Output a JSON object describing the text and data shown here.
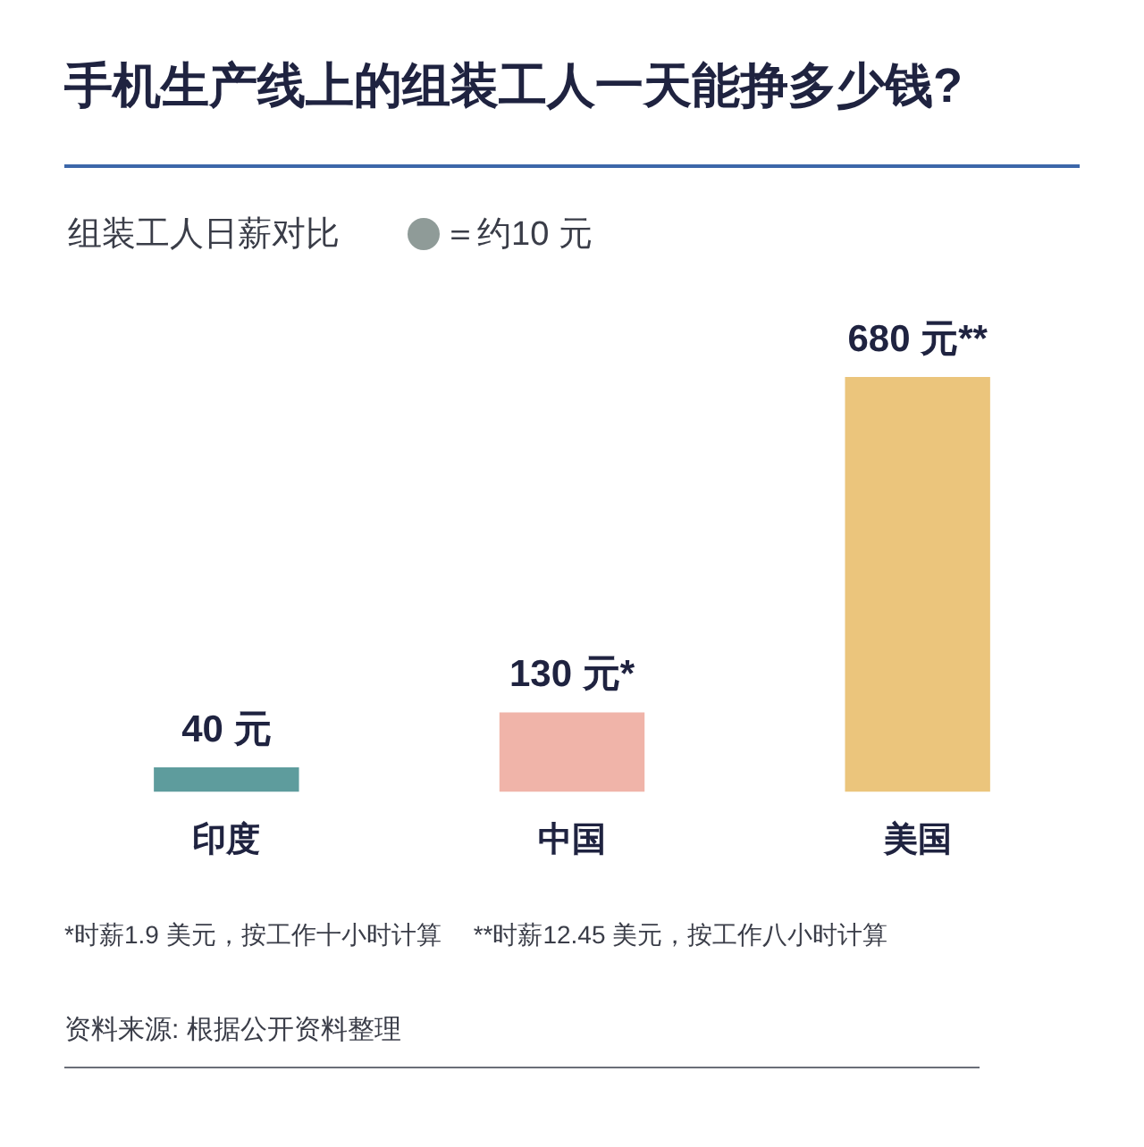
{
  "chart_data": {
    "type": "bar",
    "title": "手机生产线上的组装工人一天能挣多少钱?",
    "subtitle": "组装工人日薪对比",
    "categories": [
      "印度",
      "中国",
      "美国"
    ],
    "values": [
      40,
      130,
      680
    ],
    "colors": [
      "#5e9c9d",
      "#f0b4a9",
      "#ebc57c"
    ],
    "value_labels": [
      "40 元",
      "130 元*",
      "680 元**"
    ],
    "annotations": [
      "＝约10 元",
      "*时薪1.9 美元，按工作十小时计算",
      "**时薪12.45 美元，按工作八小时计算",
      "资料来源: 根据公开资料整理"
    ]
  }
}
